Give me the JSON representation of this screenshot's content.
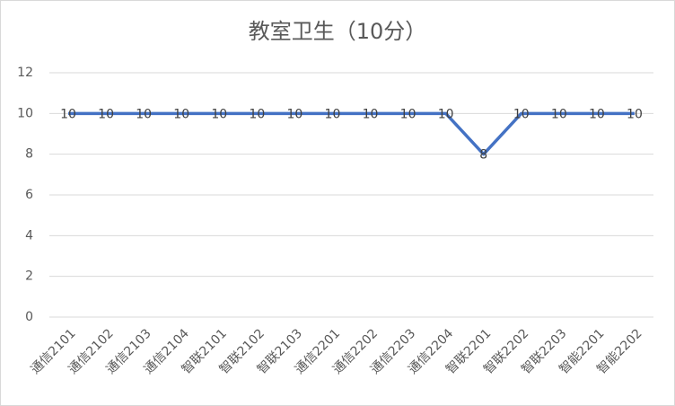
{
  "chart_data": {
    "type": "line",
    "title": "教室卫生（10分）",
    "categories": [
      "通信2101",
      "通信2102",
      "通信2103",
      "通信2104",
      "智联2101",
      "智联2102",
      "智联2103",
      "通信2201",
      "通信2202",
      "通信2203",
      "通信2204",
      "智联2201",
      "智联2202",
      "智联2203",
      "智能2201",
      "智能2202"
    ],
    "values": [
      10,
      10,
      10,
      10,
      10,
      10,
      10,
      10,
      10,
      10,
      10,
      8,
      10,
      10,
      10,
      10
    ],
    "color": "#4472c4",
    "ylim": [
      0,
      12
    ],
    "yticks": [
      0,
      2,
      4,
      6,
      8,
      10,
      12
    ],
    "grid": true,
    "data_labels": true
  }
}
